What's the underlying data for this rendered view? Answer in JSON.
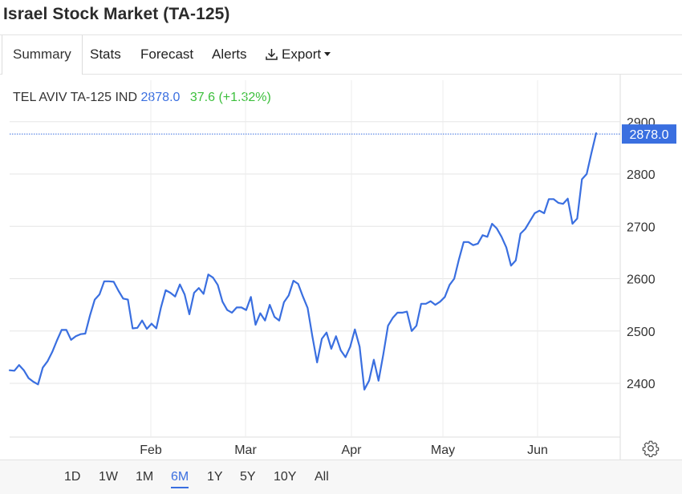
{
  "page_title": "Israel Stock Market (TA-125)",
  "tabs": [
    {
      "label": "Summary"
    },
    {
      "label": "Stats"
    },
    {
      "label": "Forecast"
    },
    {
      "label": "Alerts"
    },
    {
      "label": "Export"
    }
  ],
  "quote": {
    "symbol": "TEL AVIV TA-125 IND",
    "price": "2878.0",
    "change": "37.6 (+1.32%)",
    "price_color": "#3a6fe0",
    "change_color": "#3bbf3b"
  },
  "ranges": [
    "1D",
    "1W",
    "1M",
    "6M",
    "1Y",
    "5Y",
    "10Y",
    "All"
  ],
  "active_range": "6M",
  "chart_data": {
    "type": "line",
    "series_color": "#3a6fe0",
    "last_value_label": "2878.0",
    "ylim": [
      2300,
      2910
    ],
    "yticks": [
      2400,
      2500,
      2600,
      2700,
      2800,
      2900
    ],
    "xticks": [
      "Feb",
      "Mar",
      "Apr",
      "May",
      "Jun"
    ],
    "grid": true,
    "values": [
      2425,
      2424,
      2435,
      2425,
      2410,
      2403,
      2398,
      2430,
      2442,
      2460,
      2482,
      2502,
      2502,
      2483,
      2490,
      2494,
      2495,
      2530,
      2560,
      2570,
      2595,
      2595,
      2594,
      2577,
      2562,
      2560,
      2505,
      2506,
      2520,
      2504,
      2514,
      2505,
      2545,
      2578,
      2573,
      2566,
      2589,
      2570,
      2532,
      2573,
      2582,
      2571,
      2608,
      2602,
      2588,
      2556,
      2540,
      2535,
      2545,
      2545,
      2540,
      2565,
      2512,
      2534,
      2520,
      2550,
      2527,
      2520,
      2555,
      2568,
      2596,
      2590,
      2566,
      2544,
      2490,
      2440,
      2485,
      2497,
      2466,
      2490,
      2463,
      2450,
      2470,
      2503,
      2470,
      2388,
      2405,
      2445,
      2405,
      2455,
      2510,
      2525,
      2535,
      2535,
      2537,
      2500,
      2510,
      2552,
      2552,
      2557,
      2550,
      2556,
      2565,
      2588,
      2600,
      2637,
      2670,
      2670,
      2664,
      2667,
      2683,
      2680,
      2705,
      2696,
      2680,
      2660,
      2625,
      2635,
      2686,
      2695,
      2710,
      2725,
      2730,
      2725,
      2752,
      2752,
      2745,
      2743,
      2753,
      2705,
      2715,
      2790,
      2800,
      2840,
      2878
    ]
  }
}
